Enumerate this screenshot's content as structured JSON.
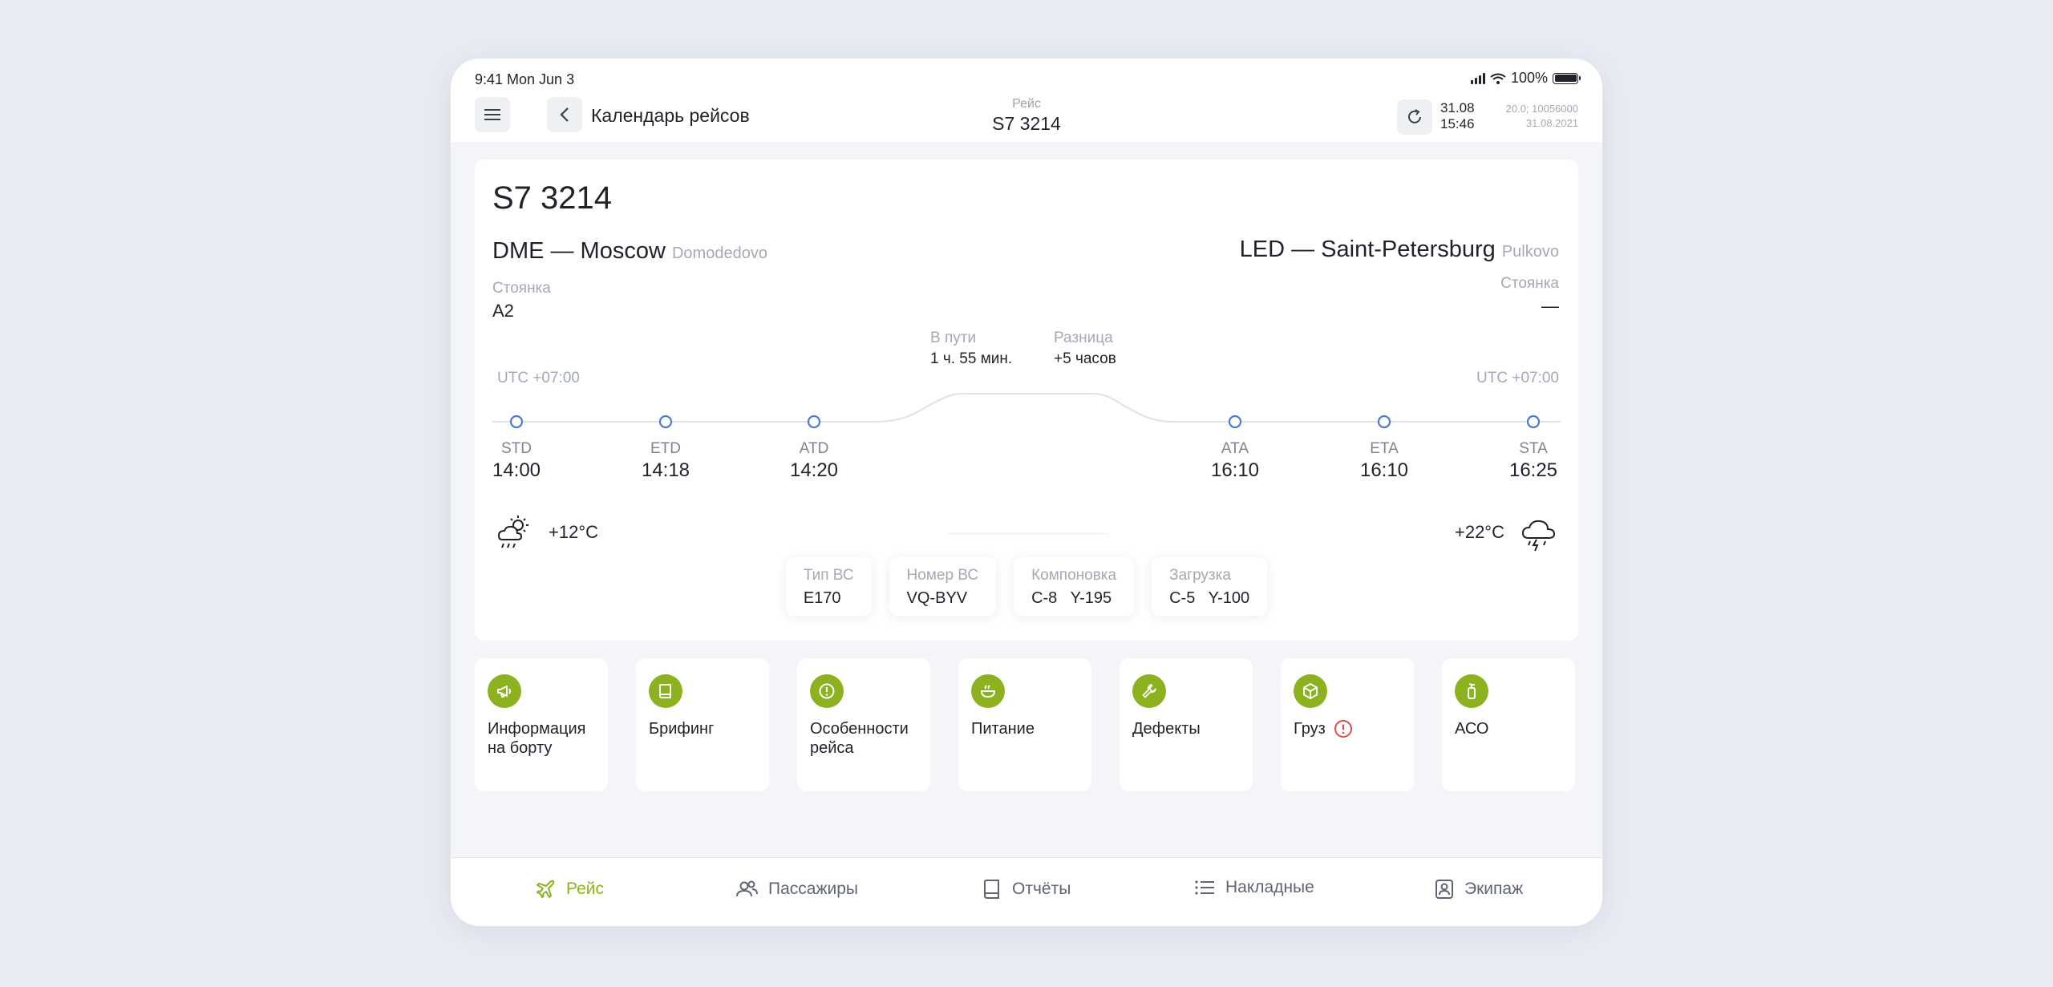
{
  "status_bar": {
    "time": "9:41  Mon Jun 3",
    "battery": "100%"
  },
  "header": {
    "menu_icon": "hamburger-icon",
    "back_icon": "chevron-left-icon",
    "back_label": "Календарь рейсов",
    "title_sub": "Рейс",
    "title_main": "S7 3214",
    "sync_icon": "refresh-icon",
    "sync_date": "31.08",
    "sync_time": "15:46",
    "version_line1": "20.0;  10056000",
    "version_line2": "31.08.2021"
  },
  "flight": {
    "number": "S7 3214",
    "departure": {
      "code_city": "DME — Moscow",
      "airport": "Domodedovo",
      "stand_label": "Стоянка",
      "stand": "A2",
      "utc": "UTC +07:00"
    },
    "arrival": {
      "code_city": "LED — Saint-Petersburg",
      "airport": "Pulkovo",
      "stand_label": "Стоянка",
      "stand": "—",
      "utc": "UTC +07:00"
    },
    "in_flight_label": "В пути",
    "in_flight": "1 ч. 55 мин.",
    "diff_label": "Разница",
    "diff": "+5 часов",
    "timeline": [
      {
        "code": "STD",
        "time": "14:00"
      },
      {
        "code": "ETD",
        "time": "14:18"
      },
      {
        "code": "ATD",
        "time": "14:20"
      },
      {
        "code": "ATA",
        "time": "16:10"
      },
      {
        "code": "ETA",
        "time": "16:10"
      },
      {
        "code": "STA",
        "time": "16:25"
      }
    ],
    "weather_departure": {
      "temp": "+12°C",
      "icon": "cloud-sun-rain-icon"
    },
    "weather_arrival": {
      "temp": "+22°C",
      "icon": "cloud-lightning-icon"
    },
    "aircraft": [
      {
        "label": "Тип ВС",
        "value": "E170"
      },
      {
        "label": "Номер ВС",
        "value": "VQ-BYV"
      },
      {
        "label": "Компоновка",
        "value": "C-8   Y-195"
      },
      {
        "label": "Загрузка",
        "value": "C-5   Y-100"
      }
    ]
  },
  "tiles": [
    {
      "label": "Информация\nна борту",
      "icon": "megaphone-icon"
    },
    {
      "label": "Брифинг",
      "icon": "book-icon"
    },
    {
      "label": "Особенности\nрейса",
      "icon": "alert-circle-icon"
    },
    {
      "label": "Питание",
      "icon": "meal-bowl-icon"
    },
    {
      "label": "Дефекты",
      "icon": "wrench-icon"
    },
    {
      "label": "Груз",
      "icon": "box-icon",
      "warning_icon": "alert-red-icon"
    },
    {
      "label": "АСО",
      "icon": "fire-extinguisher-icon"
    }
  ],
  "colors": {
    "accent": "#8db21f",
    "timeline_point": "#4a7bd0",
    "warning": "#e04a4a"
  },
  "bottom_nav": [
    {
      "label": "Рейс",
      "icon": "plane-icon",
      "active": true
    },
    {
      "label": "Пассажиры",
      "icon": "users-icon",
      "active": false
    },
    {
      "label": "Отчёты",
      "icon": "report-book-icon",
      "active": false
    },
    {
      "label": "Накладные",
      "icon": "list-icon",
      "active": false
    },
    {
      "label": "Экипаж",
      "icon": "crew-badge-icon",
      "active": false
    }
  ]
}
